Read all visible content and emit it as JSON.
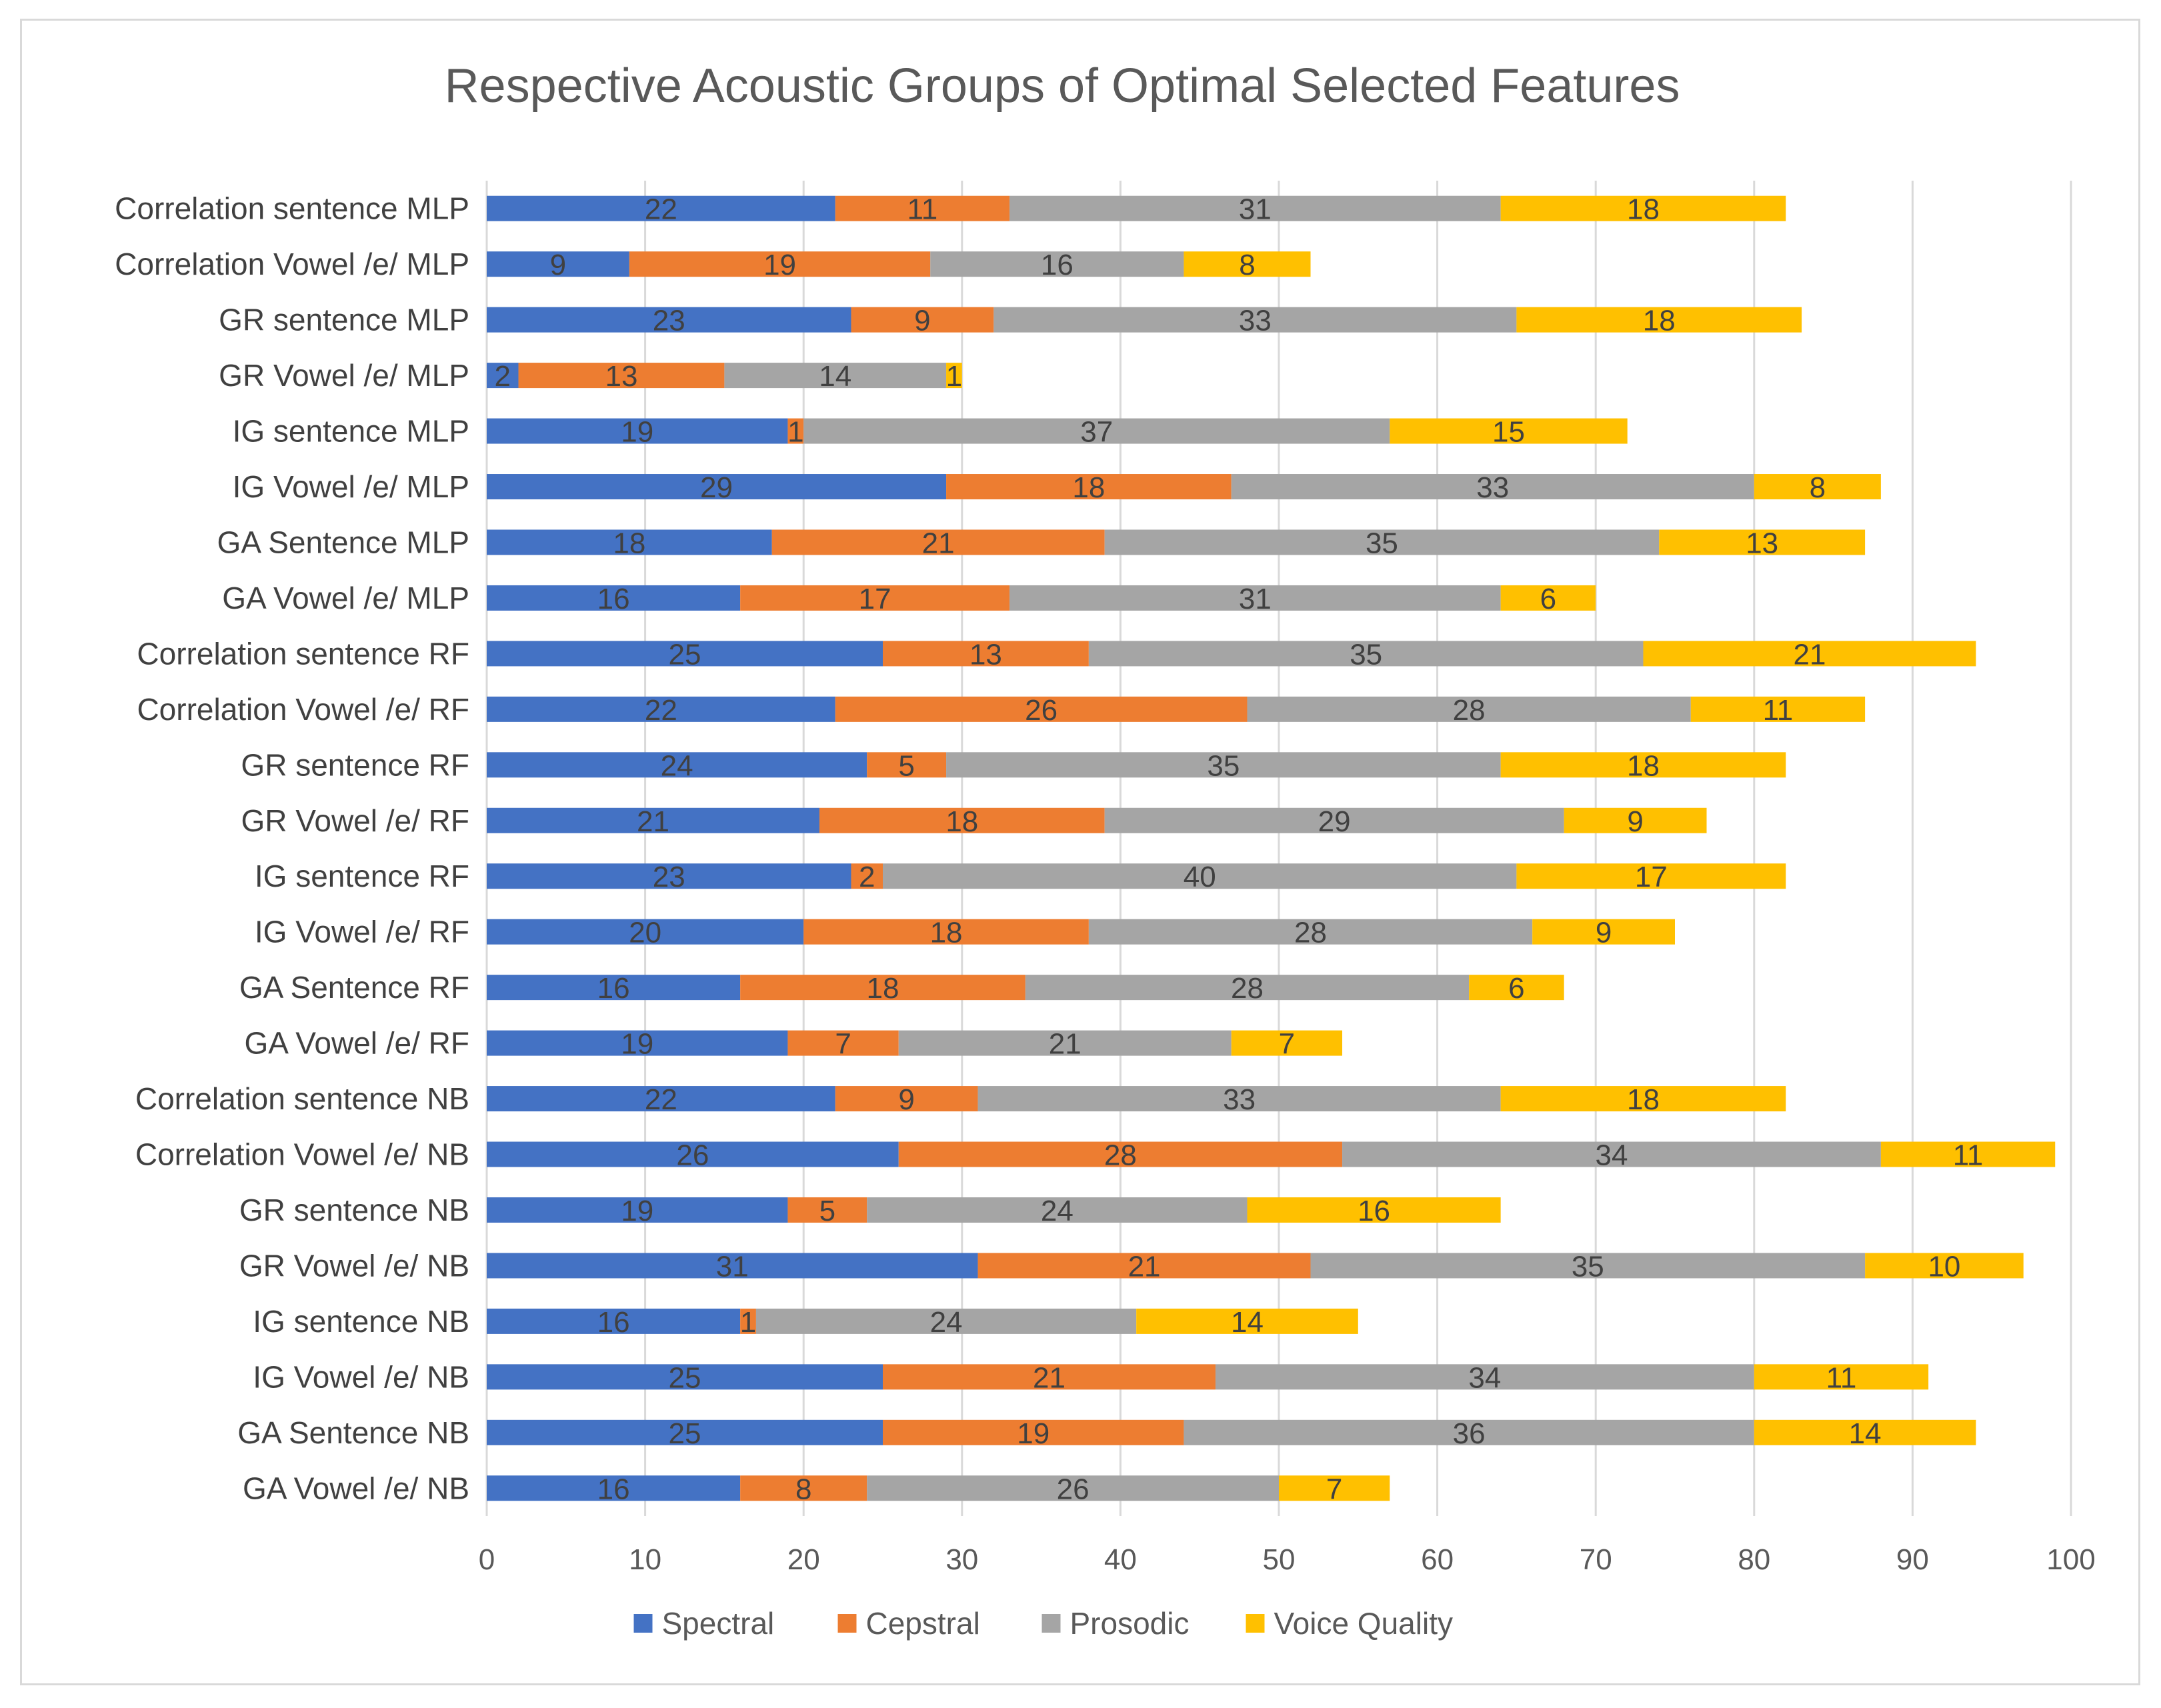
{
  "chart_data": {
    "type": "bar",
    "orientation": "horizontal",
    "stacked": true,
    "title": "Respective Acoustic Groups of Optimal Selected Features",
    "xlabel": "",
    "ylabel": "",
    "xlim": [
      0,
      100
    ],
    "xticks": [
      0,
      10,
      20,
      30,
      40,
      50,
      60,
      70,
      80,
      90,
      100
    ],
    "grid": true,
    "legend_position": "bottom",
    "categories": [
      "Correlation sentence MLP",
      "Correlation Vowel /e/ MLP",
      "GR sentence MLP",
      "GR Vowel /e/ MLP",
      "IG sentence MLP",
      "IG Vowel /e/ MLP",
      "GA Sentence MLP",
      "GA Vowel /e/ MLP",
      "Correlation sentence RF",
      "Correlation Vowel /e/ RF",
      "GR sentence RF",
      "GR Vowel /e/ RF",
      "IG sentence RF",
      "IG Vowel /e/ RF",
      "GA Sentence RF",
      "GA Vowel /e/ RF",
      "Correlation sentence NB",
      "Correlation Vowel /e/ NB",
      "GR sentence NB",
      "GR Vowel /e/ NB",
      "IG sentence NB",
      "IG Vowel /e/ NB",
      "GA Sentence NB",
      "GA Vowel /e/ NB"
    ],
    "series": [
      {
        "name": "Spectral",
        "color": "#4472c4",
        "values": [
          22,
          9,
          23,
          2,
          19,
          29,
          18,
          16,
          25,
          22,
          24,
          21,
          23,
          20,
          16,
          19,
          22,
          26,
          19,
          31,
          16,
          25,
          25,
          16
        ]
      },
      {
        "name": "Cepstral",
        "color": "#ed7d31",
        "values": [
          11,
          19,
          9,
          13,
          1,
          18,
          21,
          17,
          13,
          26,
          5,
          18,
          2,
          18,
          18,
          7,
          9,
          28,
          5,
          21,
          1,
          21,
          19,
          8
        ]
      },
      {
        "name": "Prosodic",
        "color": "#a5a5a5",
        "values": [
          31,
          16,
          33,
          14,
          37,
          33,
          35,
          31,
          35,
          28,
          35,
          29,
          40,
          28,
          28,
          21,
          33,
          34,
          24,
          35,
          24,
          34,
          36,
          26
        ]
      },
      {
        "name": "Voice Quality",
        "color": "#ffc000",
        "values": [
          18,
          8,
          18,
          1,
          15,
          8,
          13,
          6,
          21,
          11,
          18,
          9,
          17,
          9,
          6,
          7,
          18,
          11,
          16,
          10,
          14,
          11,
          14,
          7
        ]
      }
    ]
  }
}
